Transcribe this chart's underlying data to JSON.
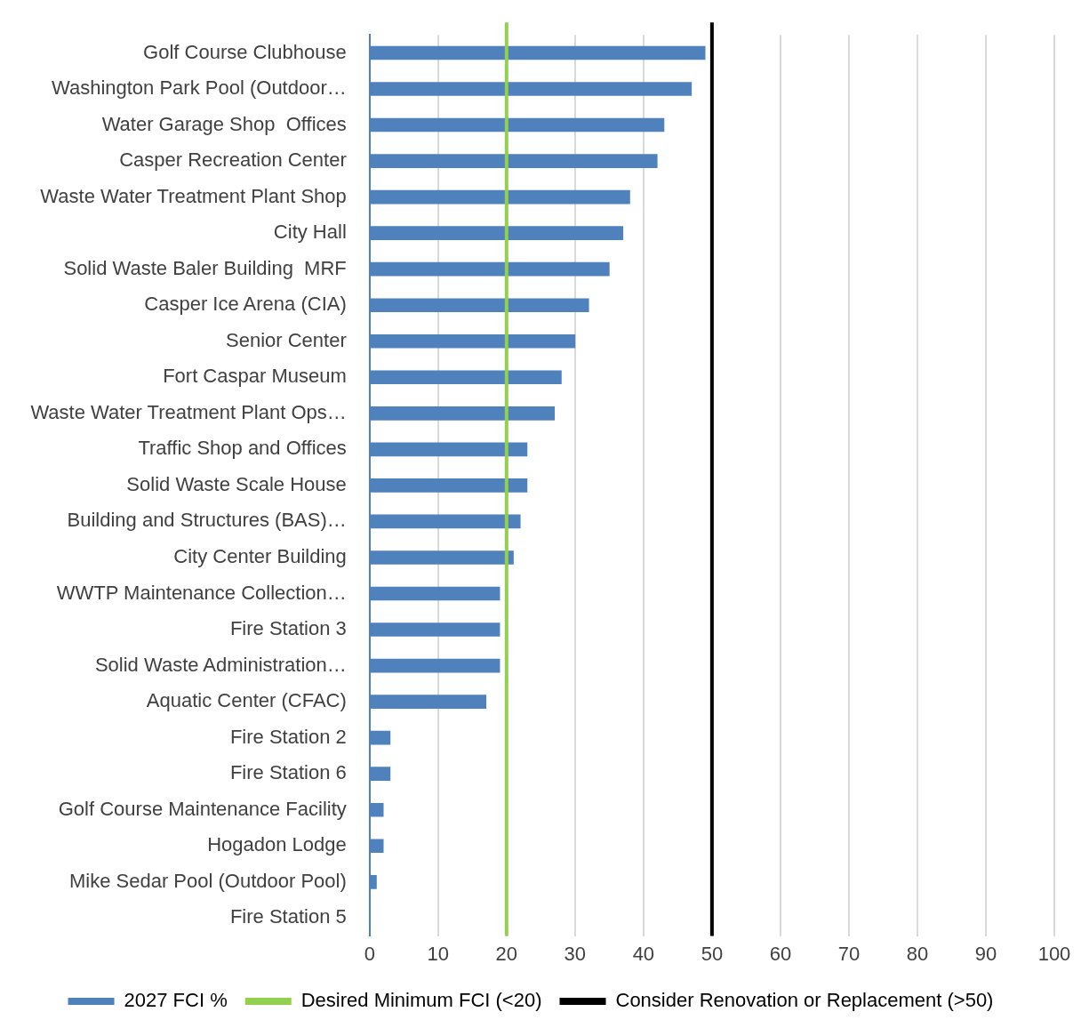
{
  "chart_data": {
    "type": "bar",
    "orientation": "horizontal",
    "categories": [
      "Golf Course Clubhouse",
      "Washington Park Pool (Outdoor…",
      "Water Garage Shop  Offices",
      "Casper Recreation Center",
      "Waste Water Treatment Plant Shop",
      "City Hall",
      "Solid Waste Baler Building  MRF",
      "Casper Ice Arena (CIA)",
      "Senior Center",
      "Fort Caspar Museum",
      "Waste Water Treatment Plant Ops…",
      "Traffic Shop and Offices",
      "Solid Waste Scale House",
      "Building and Structures (BAS)…",
      "City Center Building",
      "WWTP Maintenance Collection…",
      "Fire Station 3",
      "Solid Waste Administration…",
      "Aquatic Center (CFAC)",
      "Fire Station 2",
      "Fire Station 6",
      "Golf Course Maintenance Facility",
      "Hogadon Lodge",
      "Mike Sedar Pool (Outdoor Pool)",
      "Fire Station 5"
    ],
    "series": [
      {
        "name": "2027 FCI %",
        "color": "#4f81bd",
        "values": [
          49,
          47,
          43,
          42,
          38,
          37,
          35,
          32,
          30,
          28,
          27,
          23,
          23,
          22,
          21,
          19,
          19,
          19,
          17,
          3,
          3,
          2,
          2,
          1,
          0
        ]
      }
    ],
    "xlim": [
      0,
      100
    ],
    "xticks": [
      0,
      10,
      20,
      30,
      40,
      50,
      60,
      70,
      80,
      90,
      100
    ],
    "ref_lines": [
      {
        "axis": "x",
        "value": 20,
        "label": "Desired Minimum FCI (<20)",
        "color": "#92d050"
      },
      {
        "axis": "x",
        "value": 50,
        "label": "Consider Renovation or Replacement (>50)",
        "color": "#000000"
      }
    ],
    "grid": "x",
    "legend": "bottom"
  }
}
